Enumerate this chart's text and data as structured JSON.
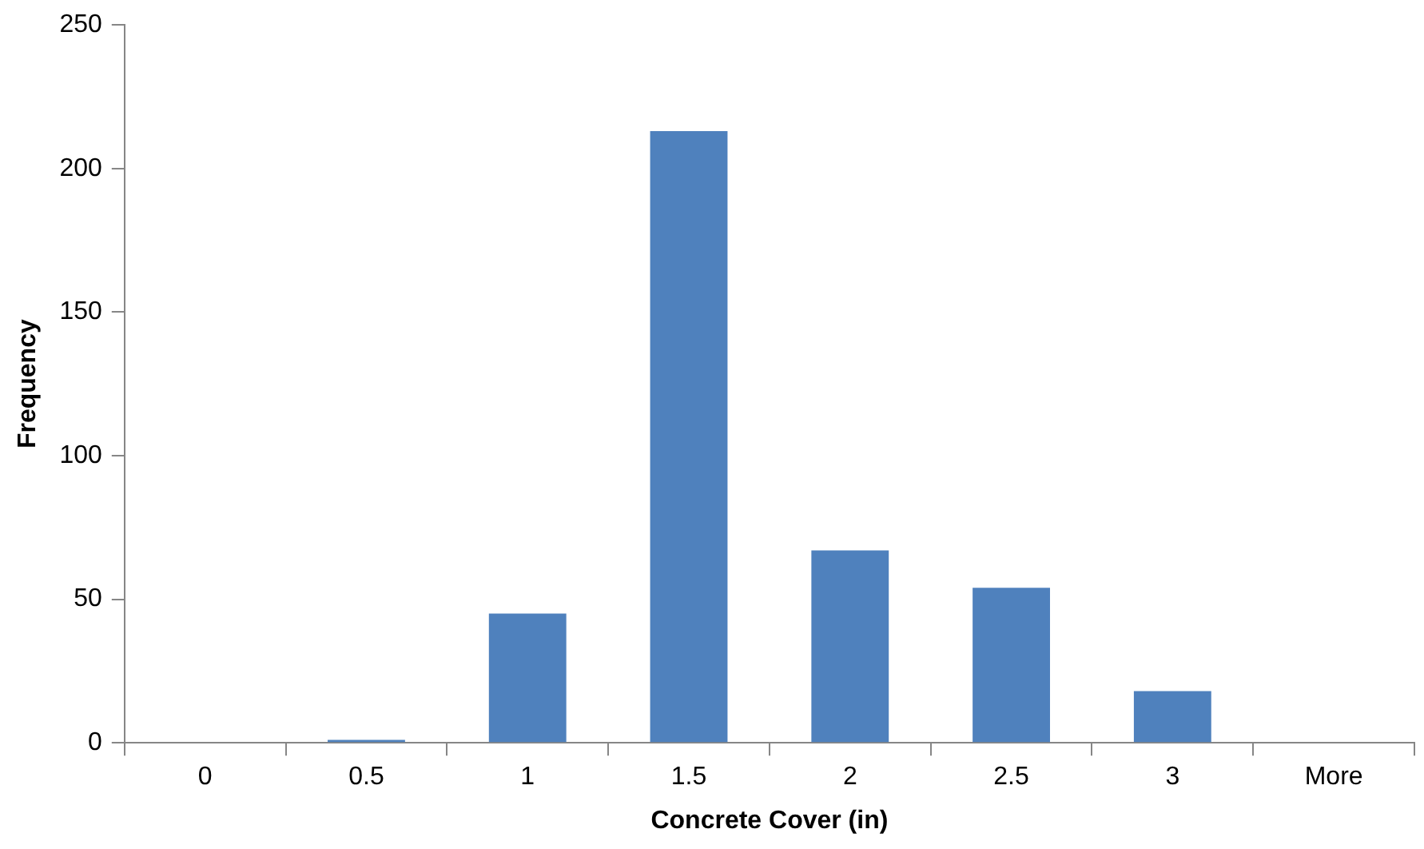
{
  "chart_data": {
    "type": "bar",
    "xlabel": "Concrete Cover (in)",
    "ylabel": "Frequency",
    "categories": [
      "0",
      "0.5",
      "1",
      "1.5",
      "2",
      "2.5",
      "3",
      "More"
    ],
    "values": [
      0,
      1,
      45,
      213,
      67,
      54,
      18,
      0
    ],
    "color": "#4f81bd",
    "ylim": [
      0,
      250
    ],
    "yticks": [
      0,
      50,
      100,
      150,
      200,
      250
    ],
    "grid": false,
    "legend": false
  }
}
